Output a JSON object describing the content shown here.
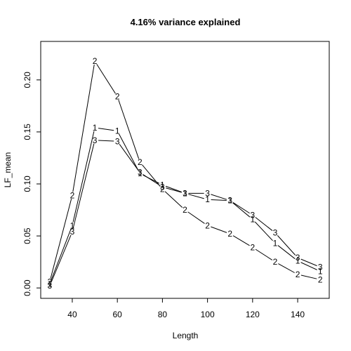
{
  "chart_data": {
    "type": "line",
    "title": "4.16% variance explained",
    "xlabel": "Length",
    "ylabel": "LF_mean",
    "xlim": [
      26,
      154
    ],
    "ylim": [
      -0.01,
      0.237
    ],
    "x_ticks": [
      40,
      60,
      80,
      100,
      120,
      140
    ],
    "y_ticks": [
      0.0,
      0.05,
      0.1,
      0.15,
      0.2
    ],
    "y_tick_labels": [
      "0.00",
      "0.05",
      "0.10",
      "0.15",
      "0.20"
    ],
    "grid": false,
    "legend": "none",
    "x": [
      30,
      40,
      50,
      60,
      70,
      80,
      90,
      100,
      110,
      120,
      130,
      140,
      150
    ],
    "series": [
      {
        "name": "1",
        "values": [
          0.004,
          0.06,
          0.154,
          0.151,
          0.11,
          0.099,
          0.091,
          0.085,
          0.084,
          0.066,
          0.043,
          0.026,
          0.016
        ]
      },
      {
        "name": "2",
        "values": [
          0.006,
          0.089,
          0.218,
          0.184,
          0.121,
          0.095,
          0.075,
          0.06,
          0.052,
          0.039,
          0.025,
          0.013,
          0.008
        ]
      },
      {
        "name": "3",
        "values": [
          0.002,
          0.054,
          0.142,
          0.141,
          0.111,
          0.097,
          0.091,
          0.091,
          0.084,
          0.07,
          0.053,
          0.029,
          0.02
        ]
      }
    ]
  }
}
